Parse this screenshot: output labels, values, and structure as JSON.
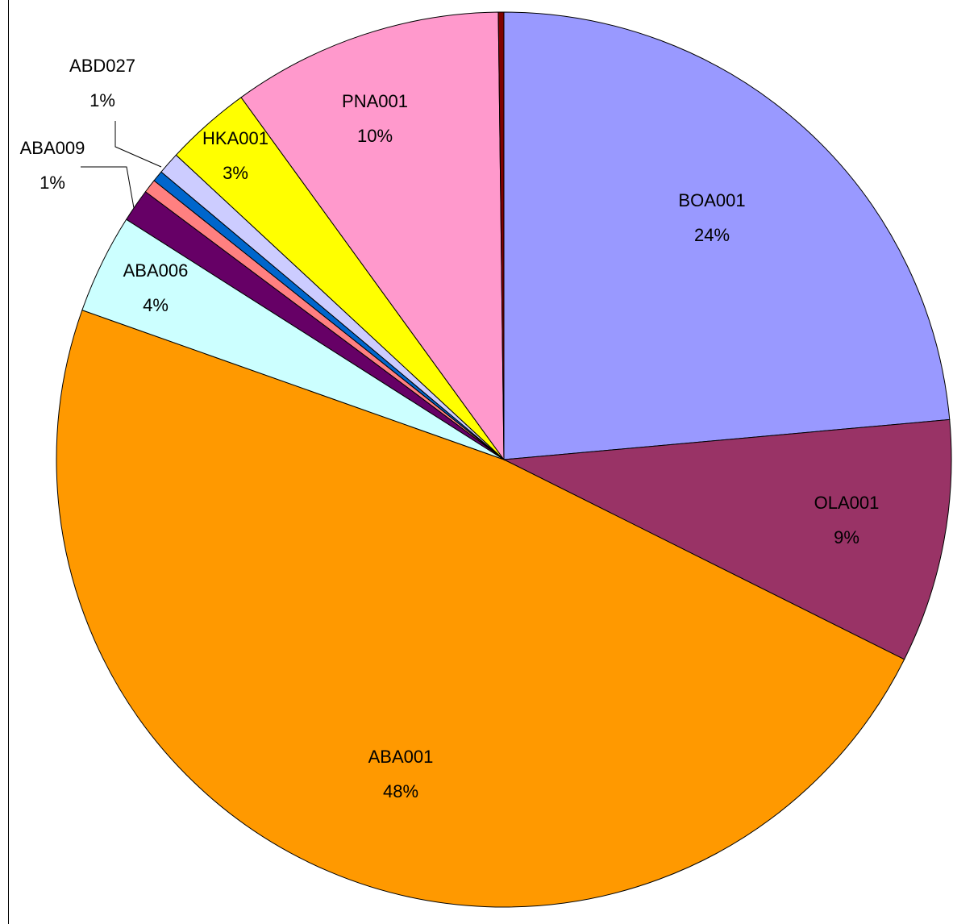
{
  "chart_data": {
    "type": "pie",
    "categories": [
      "BOA001",
      "OLA001",
      "ABA001",
      "ABA006",
      "ABA009",
      null,
      null,
      "ABD027",
      "HKA001",
      "PNA001",
      null
    ],
    "values": [
      23.6,
      8.8,
      48.1,
      3.6,
      1.2,
      0.5,
      0.4,
      0.8,
      3.1,
      9.8,
      0.2
    ],
    "value_labels": [
      "24%",
      "9%",
      "48%",
      "4%",
      "1%",
      null,
      null,
      "1%",
      "3%",
      "10%",
      null
    ],
    "colors": [
      "#9999ff",
      "#993366",
      "#ff9900",
      "#ccffff",
      "#660066",
      "#ff8080",
      "#0066cc",
      "#ccccff",
      "#ffff00",
      "#ff99cc",
      "#800000"
    ]
  }
}
